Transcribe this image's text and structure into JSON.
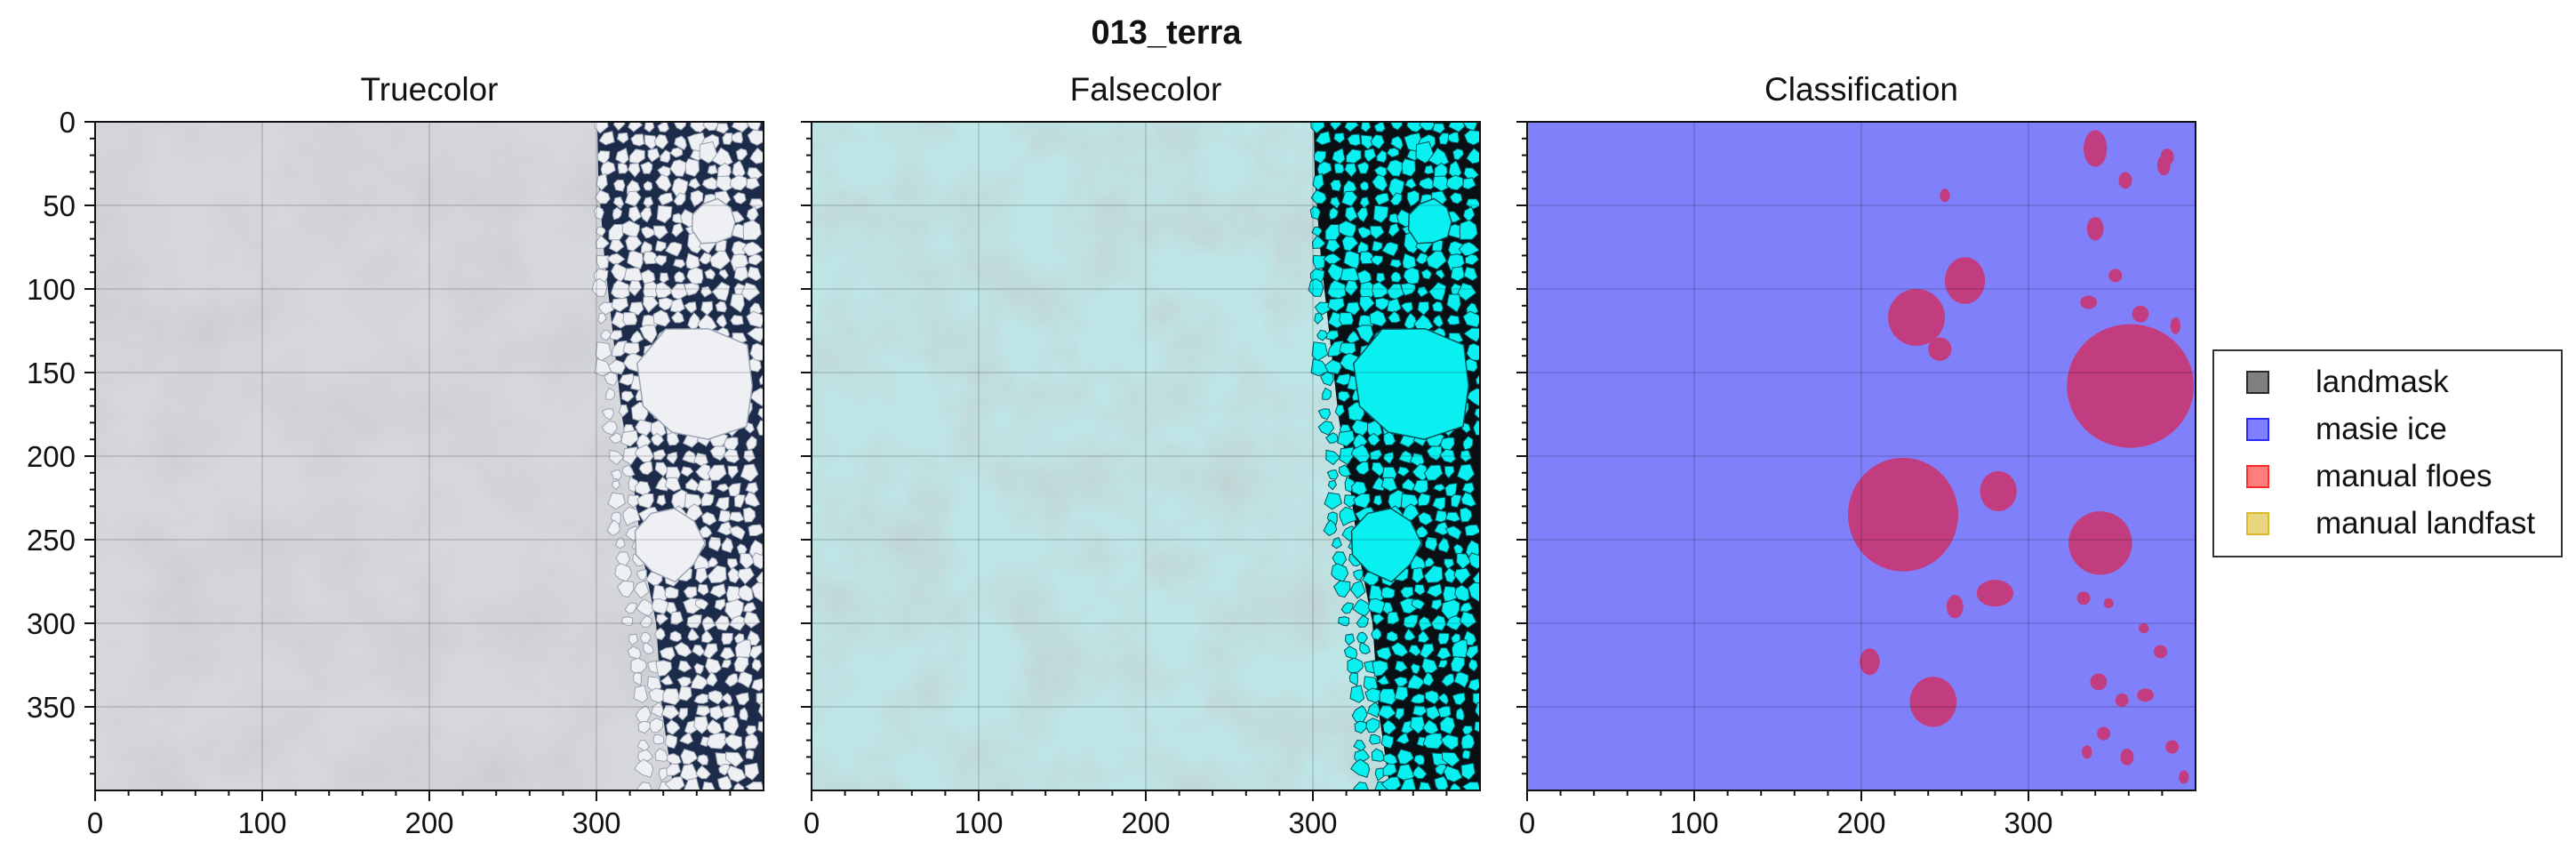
{
  "figure": {
    "suptitle": "013_terra"
  },
  "chart_data": [
    {
      "type": "image",
      "title": "Truecolor",
      "xlim": [
        0,
        400
      ],
      "ylim": [
        400,
        0
      ],
      "xticks": [
        0,
        100,
        200,
        300
      ],
      "yticks": [
        0,
        50,
        100,
        150,
        200,
        250,
        300,
        350
      ],
      "grid": true,
      "content": "satellite true-color image: cloud cover on left, broken sea ice floes and dark open water on right"
    },
    {
      "type": "image",
      "title": "Falsecolor",
      "xlim": [
        0,
        400
      ],
      "ylim": [
        400,
        0
      ],
      "xticks": [
        0,
        100,
        200,
        300
      ],
      "yticks": [
        0,
        50,
        100,
        150,
        200,
        250,
        300,
        350
      ],
      "grid": true,
      "content": "false-color composite: pale cyan clouds on left, bright cyan ice floes and black water on right"
    },
    {
      "type": "image",
      "title": "Classification",
      "xlim": [
        0,
        400
      ],
      "ylim": [
        400,
        0
      ],
      "xticks": [
        0,
        100,
        200,
        300
      ],
      "yticks": [
        0,
        50,
        100,
        150,
        200,
        250,
        300,
        350
      ],
      "grid": true,
      "background_class": "masie ice",
      "overlay_class": "manual floes",
      "floes": [
        {
          "cx": 233,
          "cy": 117,
          "rx": 17,
          "ry": 17
        },
        {
          "cx": 262,
          "cy": 95,
          "rx": 12,
          "ry": 14
        },
        {
          "cx": 247,
          "cy": 136,
          "rx": 7,
          "ry": 7
        },
        {
          "cx": 250,
          "cy": 44,
          "rx": 3,
          "ry": 4
        },
        {
          "cx": 225,
          "cy": 235,
          "rx": 33,
          "ry": 34
        },
        {
          "cx": 282,
          "cy": 221,
          "rx": 11,
          "ry": 12
        },
        {
          "cx": 280,
          "cy": 282,
          "rx": 11,
          "ry": 8
        },
        {
          "cx": 256,
          "cy": 290,
          "rx": 5,
          "ry": 7
        },
        {
          "cx": 205,
          "cy": 323,
          "rx": 6,
          "ry": 8
        },
        {
          "cx": 243,
          "cy": 347,
          "rx": 14,
          "ry": 15
        },
        {
          "cx": 361,
          "cy": 158,
          "rx": 38,
          "ry": 37
        },
        {
          "cx": 343,
          "cy": 252,
          "rx": 19,
          "ry": 19
        },
        {
          "cx": 340,
          "cy": 16,
          "rx": 7,
          "ry": 11
        },
        {
          "cx": 358,
          "cy": 35,
          "rx": 4,
          "ry": 5
        },
        {
          "cx": 381,
          "cy": 26,
          "rx": 4,
          "ry": 6
        },
        {
          "cx": 383,
          "cy": 21,
          "rx": 4,
          "ry": 5
        },
        {
          "cx": 340,
          "cy": 64,
          "rx": 5,
          "ry": 7
        },
        {
          "cx": 331,
          "cy": 147,
          "rx": 5,
          "ry": 4
        },
        {
          "cx": 336,
          "cy": 108,
          "rx": 5,
          "ry": 4
        },
        {
          "cx": 352,
          "cy": 92,
          "rx": 4,
          "ry": 4
        },
        {
          "cx": 367,
          "cy": 115,
          "rx": 5,
          "ry": 5
        },
        {
          "cx": 388,
          "cy": 122,
          "rx": 3,
          "ry": 5
        },
        {
          "cx": 333,
          "cy": 285,
          "rx": 4,
          "ry": 4
        },
        {
          "cx": 348,
          "cy": 288,
          "rx": 3,
          "ry": 3
        },
        {
          "cx": 369,
          "cy": 303,
          "rx": 3,
          "ry": 3
        },
        {
          "cx": 379,
          "cy": 317,
          "rx": 4,
          "ry": 4
        },
        {
          "cx": 342,
          "cy": 335,
          "rx": 5,
          "ry": 5
        },
        {
          "cx": 356,
          "cy": 346,
          "rx": 4,
          "ry": 4
        },
        {
          "cx": 370,
          "cy": 343,
          "rx": 5,
          "ry": 4
        },
        {
          "cx": 345,
          "cy": 366,
          "rx": 4,
          "ry": 4
        },
        {
          "cx": 359,
          "cy": 380,
          "rx": 4,
          "ry": 5
        },
        {
          "cx": 386,
          "cy": 374,
          "rx": 4,
          "ry": 4
        },
        {
          "cx": 393,
          "cy": 392,
          "rx": 3,
          "ry": 4
        },
        {
          "cx": 335,
          "cy": 377,
          "rx": 3,
          "ry": 4
        }
      ]
    }
  ],
  "legend": {
    "items": [
      {
        "label": "landmask",
        "color": "#000000"
      },
      {
        "label": "masie ice",
        "color": "#0000ff"
      },
      {
        "label": "manual floes",
        "color": "#ff0000"
      },
      {
        "label": "manual landfast",
        "color": "#d4aa00"
      }
    ]
  },
  "colors": {
    "masie_fill": "#8080fb",
    "floe_fill": "#c23d7f",
    "cloud_base": "#d8d9dd",
    "water_dark": "#1c2b49",
    "ice_white": "#eef0f3",
    "false_base": "#bde6e6",
    "false_ice": "#08f0f0",
    "false_water": "#0a0f14"
  }
}
